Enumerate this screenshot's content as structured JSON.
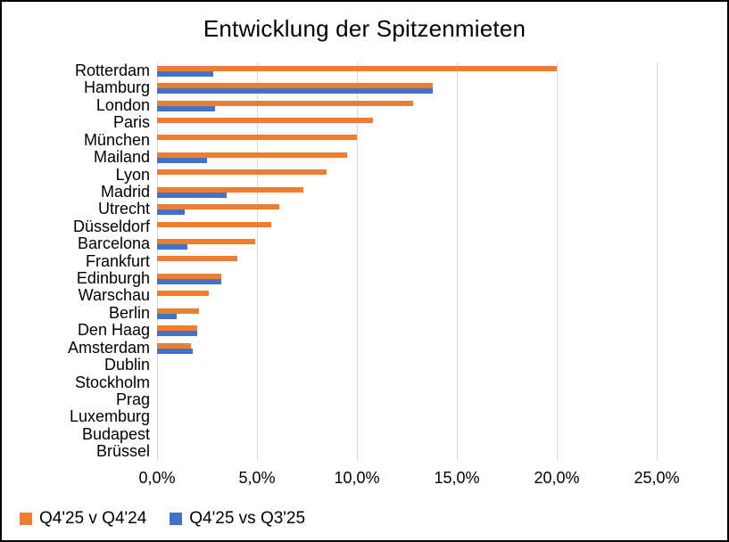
{
  "chart_data": {
    "type": "bar",
    "orientation": "horizontal",
    "title": "Entwicklung der Spitzenmieten",
    "categories": [
      "Rotterdam",
      "Hamburg",
      "London",
      "Paris",
      "München",
      "Mailand",
      "Lyon",
      "Madrid",
      "Utrecht",
      "Düsseldorf",
      "Barcelona",
      "Frankfurt",
      "Edinburgh",
      "Warschau",
      "Berlin",
      "Den Haag",
      "Amsterdam",
      "Dublin",
      "Stockholm",
      "Prag",
      "Luxemburg",
      "Budapest",
      "Brüssel"
    ],
    "series": [
      {
        "name": "Q4'25 v Q4'24",
        "color": "#ED7D31",
        "values": [
          20.0,
          13.8,
          12.8,
          10.8,
          10.0,
          9.5,
          8.5,
          7.3,
          6.1,
          5.7,
          4.9,
          4.0,
          3.2,
          2.6,
          2.1,
          2.0,
          1.7,
          0,
          0,
          0,
          0,
          0,
          0
        ]
      },
      {
        "name": "Q4'25 vs Q3'25",
        "color": "#4472C4",
        "values": [
          2.8,
          13.8,
          2.9,
          0,
          0,
          2.5,
          0,
          3.5,
          1.4,
          0,
          1.5,
          0,
          3.2,
          0,
          1.0,
          2.0,
          1.8,
          0,
          0,
          0,
          0,
          0,
          0
        ]
      }
    ],
    "x_ticks": [
      {
        "label": "0,0%",
        "value": 0
      },
      {
        "label": "5,0%",
        "value": 5
      },
      {
        "label": "10,0%",
        "value": 10
      },
      {
        "label": "15,0%",
        "value": 15
      },
      {
        "label": "20,0%",
        "value": 20
      },
      {
        "label": "25,0%",
        "value": 25
      }
    ],
    "xlim": [
      0,
      27.5
    ],
    "value_unit": "percent",
    "grid": "vertical",
    "legend_position": "bottom-left",
    "colors": {
      "gridline": "#D9D9D9",
      "text": "#000000",
      "background": "#FFFFFF",
      "frame_border": "#000000"
    }
  }
}
